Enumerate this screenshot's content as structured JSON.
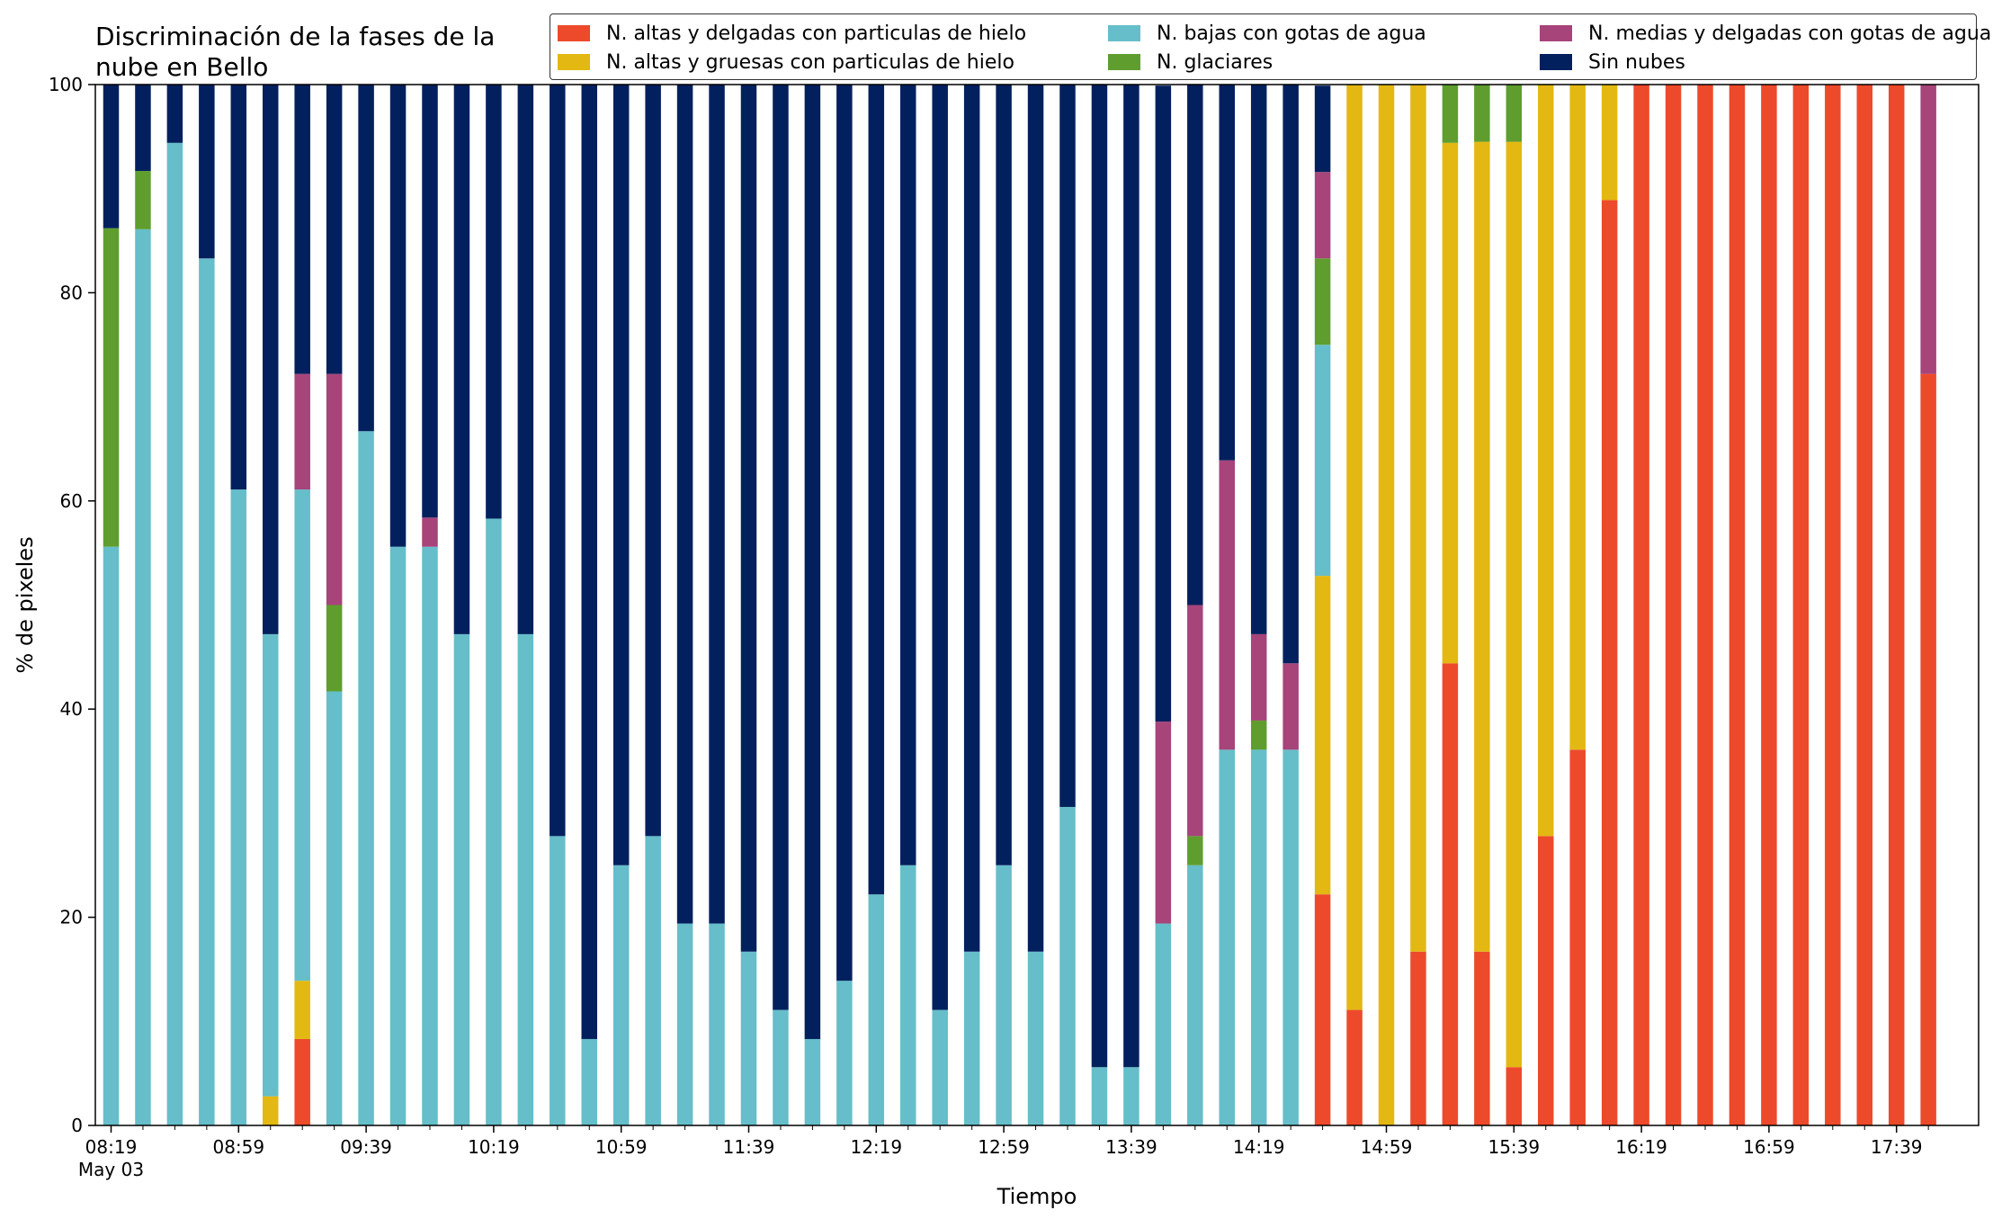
{
  "chart_data": {
    "type": "bar",
    "stacked": true,
    "title": "Discriminación de la fases de la\nnube en Bello",
    "xlabel": "Tiempo",
    "ylabel": "% de pixeles",
    "ylim": [
      0,
      100
    ],
    "y_ticks": [
      0,
      20,
      40,
      60,
      80,
      100
    ],
    "legend_placement": "top",
    "x_tick_labels": [
      "08:19",
      "08:59",
      "09:39",
      "10:19",
      "10:59",
      "11:39",
      "12:19",
      "12:59",
      "13:39",
      "14:19",
      "14:59",
      "15:39",
      "16:19",
      "16:59",
      "17:39"
    ],
    "x_date_label": "May 03",
    "categories": [
      "08:19",
      "08:29",
      "08:39",
      "08:49",
      "08:59",
      "09:09",
      "09:19",
      "09:29",
      "09:39",
      "09:49",
      "09:59",
      "10:09",
      "10:19",
      "10:29",
      "10:39",
      "10:49",
      "10:59",
      "11:09",
      "11:19",
      "11:29",
      "11:39",
      "11:49",
      "11:59",
      "12:09",
      "12:19",
      "12:29",
      "12:39",
      "12:49",
      "12:59",
      "13:09",
      "13:19",
      "13:29",
      "13:39",
      "13:49",
      "13:59",
      "14:09",
      "14:19",
      "14:29",
      "14:39",
      "14:49",
      "14:59",
      "15:09",
      "15:19",
      "15:29",
      "15:39",
      "15:49",
      "15:59",
      "16:09",
      "16:19",
      "16:29",
      "16:39",
      "16:49",
      "16:59",
      "17:09",
      "17:19",
      "17:29",
      "17:39",
      "17:49"
    ],
    "series": [
      {
        "name": "N. altas y delgadas con particulas de hielo",
        "color": "#ed4a2b",
        "values": [
          0,
          0,
          0,
          0,
          0,
          0,
          8.3,
          0,
          0,
          0,
          0,
          0,
          0,
          0,
          0,
          0,
          0,
          0,
          0,
          0,
          0,
          0,
          0,
          0,
          0,
          0,
          0,
          0,
          0,
          0,
          0,
          0,
          0,
          0,
          0,
          0,
          0,
          0,
          22.2,
          11.1,
          0,
          16.7,
          44.4,
          16.7,
          5.6,
          27.8,
          36.1,
          88.9,
          100,
          100,
          100,
          100,
          100,
          100,
          100,
          100,
          100,
          72.2
        ]
      },
      {
        "name": "N. altas y gruesas con particulas de hielo",
        "color": "#e3b812",
        "values": [
          0,
          0,
          0,
          0,
          0,
          2.8,
          5.6,
          0,
          0,
          0,
          0,
          0,
          0,
          0,
          0,
          0,
          0,
          0,
          0,
          0,
          0,
          0,
          0,
          0,
          0,
          0,
          0,
          0,
          0,
          0,
          0,
          0,
          0,
          0,
          0,
          0,
          0,
          0,
          30.6,
          88.9,
          100,
          83.3,
          50,
          77.8,
          88.9,
          72.2,
          63.9,
          11.1,
          0,
          0,
          0,
          0,
          0,
          0,
          0,
          0,
          0,
          0
        ]
      },
      {
        "name": "N. bajas con gotas de agua",
        "color": "#65bec9",
        "values": [
          55.6,
          86.1,
          94.4,
          83.3,
          61.1,
          44.4,
          47.2,
          41.7,
          66.7,
          55.6,
          55.6,
          47.2,
          58.3,
          47.2,
          27.8,
          8.3,
          25,
          27.8,
          19.4,
          19.4,
          16.7,
          11.1,
          8.3,
          13.9,
          22.2,
          25,
          11.1,
          16.7,
          25,
          16.7,
          30.6,
          5.6,
          5.6,
          19.4,
          25,
          36.1,
          36.1,
          36.1,
          22.2,
          0,
          0,
          0,
          0,
          0,
          0,
          0,
          0,
          0,
          0,
          0,
          0,
          0,
          0,
          0,
          0,
          0,
          0,
          0
        ]
      },
      {
        "name": "N. glaciares",
        "color": "#5f9e2e",
        "values": [
          30.6,
          5.6,
          0,
          0,
          0,
          0,
          0,
          8.3,
          0,
          0,
          0,
          0,
          0,
          0,
          0,
          0,
          0,
          0,
          0,
          0,
          0,
          0,
          0,
          0,
          0,
          0,
          0,
          0,
          0,
          0,
          0,
          0,
          0,
          0,
          2.8,
          0,
          2.8,
          0,
          8.3,
          0,
          0,
          0,
          5.6,
          5.6,
          5.6,
          0,
          0,
          0,
          0,
          0,
          0,
          0,
          0,
          0,
          0,
          0,
          0,
          0
        ]
      },
      {
        "name": "N. medias y delgadas con gotas de agua",
        "color": "#a7447a",
        "values": [
          0,
          0,
          0,
          0,
          0,
          0,
          11.1,
          22.2,
          0,
          0,
          2.8,
          0,
          0,
          0,
          0,
          0,
          0,
          0,
          0,
          0,
          0,
          0,
          0,
          0,
          0,
          0,
          0,
          0,
          0,
          0,
          0,
          0,
          0,
          19.4,
          22.2,
          27.8,
          8.3,
          8.3,
          8.3,
          0,
          0,
          0,
          0,
          0,
          0,
          0,
          0,
          0,
          0,
          0,
          0,
          0,
          0,
          0,
          0,
          0,
          0,
          27.8
        ]
      },
      {
        "name": "Sin nubes",
        "color": "#03205e",
        "values": [
          13.9,
          8.3,
          5.6,
          16.7,
          38.9,
          52.8,
          27.8,
          27.8,
          33.3,
          44.4,
          41.7,
          52.8,
          41.7,
          52.8,
          72.2,
          91.7,
          75,
          72.2,
          80.6,
          80.6,
          83.3,
          88.9,
          91.7,
          86.1,
          77.8,
          75,
          88.9,
          83.3,
          75,
          83.3,
          69.4,
          94.4,
          94.4,
          61.1,
          50,
          36.1,
          52.8,
          55.6,
          8.3,
          0,
          0,
          0,
          0,
          0,
          0,
          0,
          0,
          0,
          0,
          0,
          0,
          0,
          0,
          0,
          0,
          0,
          0,
          0
        ]
      }
    ]
  }
}
